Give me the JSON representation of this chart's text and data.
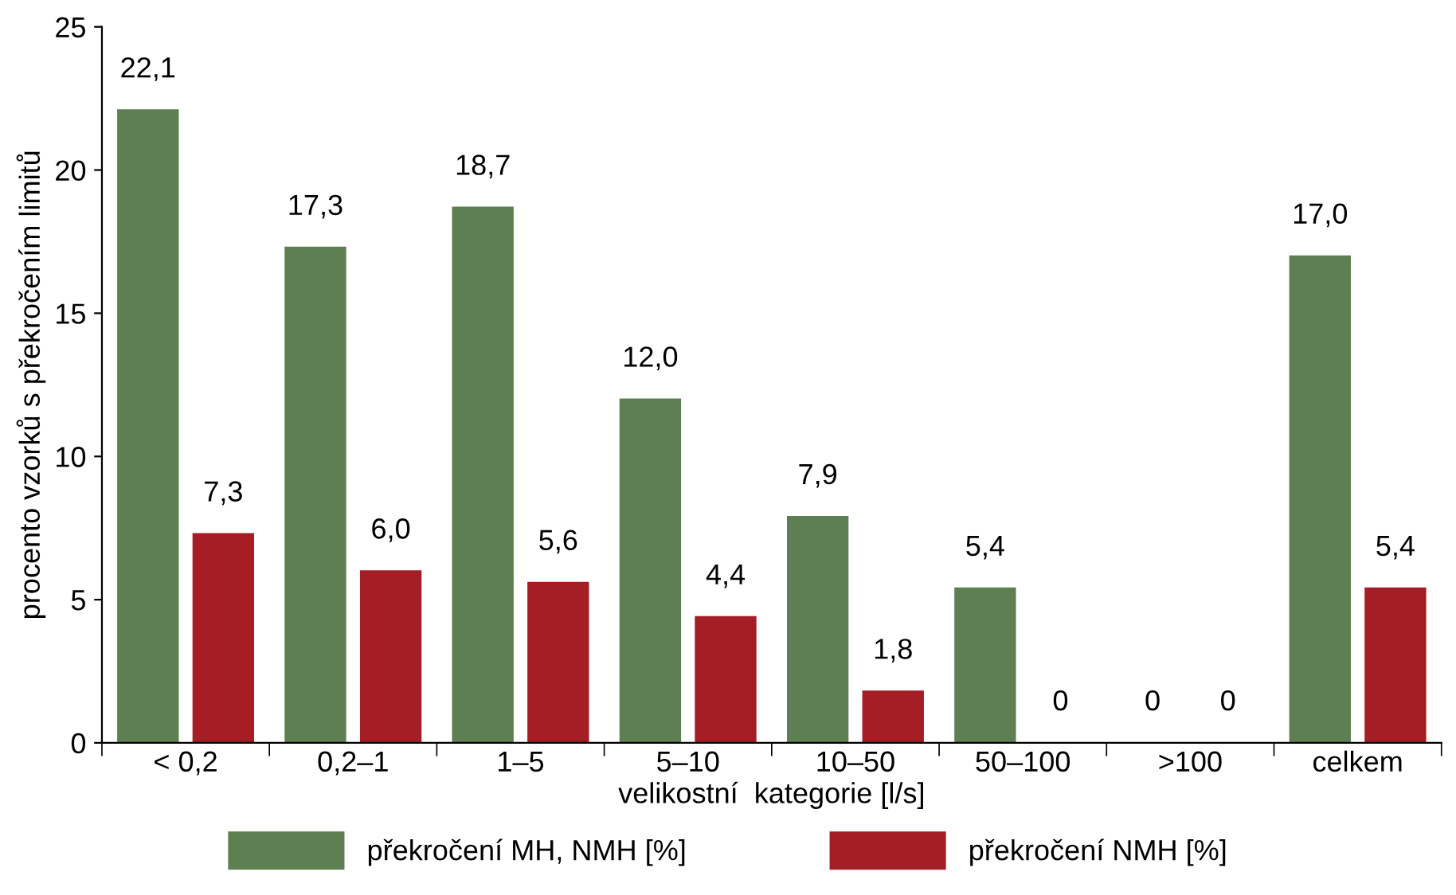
{
  "chart_data": {
    "type": "bar",
    "xlabel": "velikostní  kategorie [l/s]",
    "ylabel": "procento vzorků s překročením limitů",
    "categories": [
      "< 0,2",
      "0,2–1",
      "1–5",
      "5–10",
      "10–50",
      "50–100",
      ">100",
      "celkem"
    ],
    "series": [
      {
        "name": "překročení MH, NMH [%]",
        "color": "#5e7f52",
        "values": [
          22.1,
          17.3,
          18.7,
          12.0,
          7.9,
          5.4,
          0,
          17.0
        ],
        "value_labels": [
          "22,1",
          "17,3",
          "18,7",
          "12,0",
          "7,9",
          "5,4",
          "0",
          "17,0"
        ]
      },
      {
        "name": "překročení NMH [%]",
        "color": "#a51d25",
        "values": [
          7.3,
          6.0,
          5.6,
          4.4,
          1.8,
          0,
          0,
          5.4
        ],
        "value_labels": [
          "7,3",
          "6,0",
          "5,6",
          "4,4",
          "1,8",
          "0",
          "0",
          "5,4"
        ]
      }
    ],
    "ylim": [
      0,
      25
    ],
    "yticks": [
      0,
      5,
      10,
      15,
      20,
      25
    ],
    "grid": false,
    "legend": "bottom"
  }
}
